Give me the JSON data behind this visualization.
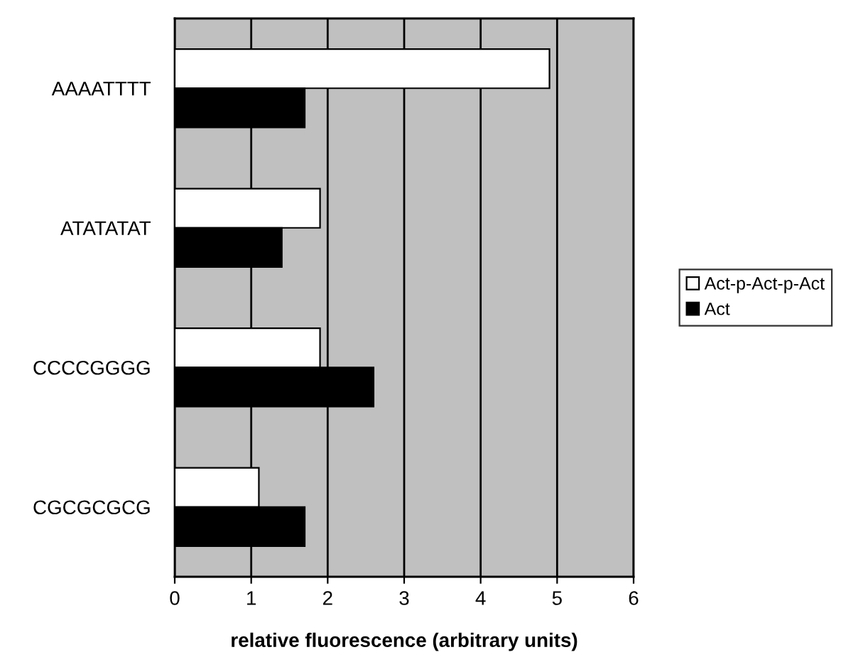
{
  "chart_data": {
    "type": "bar",
    "orientation": "horizontal",
    "xlabel": "relative fluorescence (arbitrary units)",
    "categories": [
      "AAAATTTT",
      "ATATATAT",
      "CCCCGGGG",
      "CGCGCGCG"
    ],
    "series": [
      {
        "name": "Act-p-Act-p-Act",
        "color": "#ffffff",
        "values": [
          4.9,
          1.9,
          1.9,
          1.1
        ]
      },
      {
        "name": "Act",
        "color": "#000000",
        "values": [
          1.7,
          1.4,
          2.6,
          1.7
        ]
      }
    ],
    "xlim": [
      0,
      6
    ],
    "xticks": [
      0,
      1,
      2,
      3,
      4,
      5,
      6
    ],
    "grid": "x",
    "legend": "right"
  }
}
